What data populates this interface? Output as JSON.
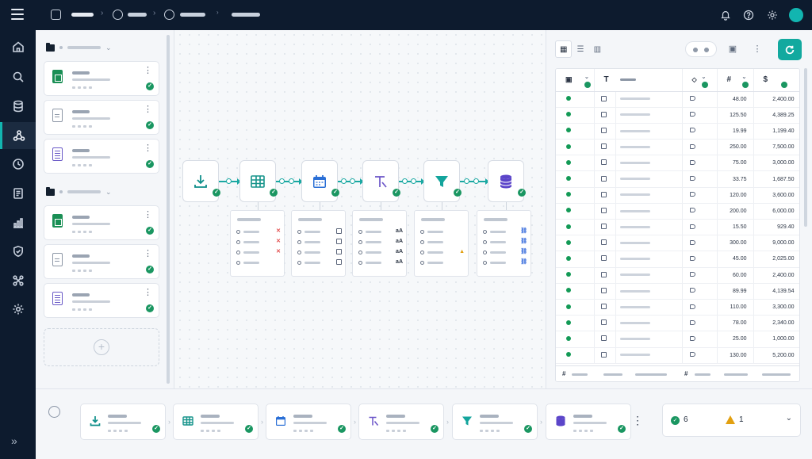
{
  "theme": {
    "accent": "#12a99f",
    "nav_bg": "#0d1b2e",
    "success": "#1a9661",
    "warning": "#e2a010",
    "error": "#e24b4b"
  },
  "topbar": {
    "icons": [
      "menu-icon",
      "bell-icon",
      "help-icon",
      "gear-icon",
      "avatar"
    ],
    "icon_glyphs": {
      "bell": "🔔",
      "help": "?",
      "gear": "⚙"
    }
  },
  "rail": {
    "items": [
      "home",
      "search",
      "database",
      "pipeline",
      "history",
      "report",
      "analytics",
      "security",
      "integrations",
      "settings"
    ],
    "active": "pipeline",
    "expand_glyph": "»"
  },
  "files": {
    "groups": [
      {
        "items": [
          {
            "type": "sheet"
          },
          {
            "type": "doc"
          },
          {
            "type": "form"
          }
        ]
      },
      {
        "items": [
          {
            "type": "sheet"
          },
          {
            "type": "doc"
          },
          {
            "type": "form"
          }
        ]
      }
    ],
    "add_glyph": "+"
  },
  "pipeline": {
    "nodes": [
      "import",
      "table",
      "schedule",
      "text",
      "filter",
      "database"
    ],
    "details": [
      {
        "rows": [
          "x",
          "x",
          "x",
          ""
        ]
      },
      {
        "rows": [
          "cal",
          "cal",
          "cal",
          "cal"
        ]
      },
      {
        "rows": [
          "aA",
          "aA",
          "aA",
          "aA"
        ]
      },
      {
        "rows": [
          "",
          "",
          "warn",
          ""
        ]
      },
      {
        "rows": [
          "link",
          "link",
          "link",
          "link"
        ]
      }
    ],
    "glyphs": {
      "x": "✕",
      "aA": "aA",
      "warn": "▲",
      "link": "🔗"
    }
  },
  "table": {
    "header_glyphs": {
      "text": "T",
      "num": "#",
      "currency": "$"
    },
    "rows": [
      {
        "qty": "48.00",
        "amount": "2,400.00"
      },
      {
        "qty": "125.50",
        "amount": "4,389.25"
      },
      {
        "qty": "19.99",
        "amount": "1,199.40"
      },
      {
        "qty": "250.00",
        "amount": "7,500.00"
      },
      {
        "qty": "75.00",
        "amount": "3,000.00"
      },
      {
        "qty": "33.75",
        "amount": "1,687.50"
      },
      {
        "qty": "120.00",
        "amount": "3,600.00"
      },
      {
        "qty": "200.00",
        "amount": "6,000.00"
      },
      {
        "qty": "15.50",
        "amount": "929.40"
      },
      {
        "qty": "300.00",
        "amount": "9,000.00"
      },
      {
        "qty": "45.00",
        "amount": "2,025.00"
      },
      {
        "qty": "60.00",
        "amount": "2,400.00"
      },
      {
        "qty": "89.99",
        "amount": "4,139.54"
      },
      {
        "qty": "110.00",
        "amount": "3,300.00"
      },
      {
        "qty": "78.00",
        "amount": "2,340.00"
      },
      {
        "qty": "25.00",
        "amount": "1,000.00"
      },
      {
        "qty": "130.00",
        "amount": "5,200.00"
      }
    ]
  },
  "summary": {
    "ok_count": "6",
    "warn_count": "1",
    "ok_glyph": "✓",
    "dropdown_glyph": "⌄"
  },
  "steps": {
    "kebab_glyph": "⋮",
    "arrow_glyph": "›"
  }
}
